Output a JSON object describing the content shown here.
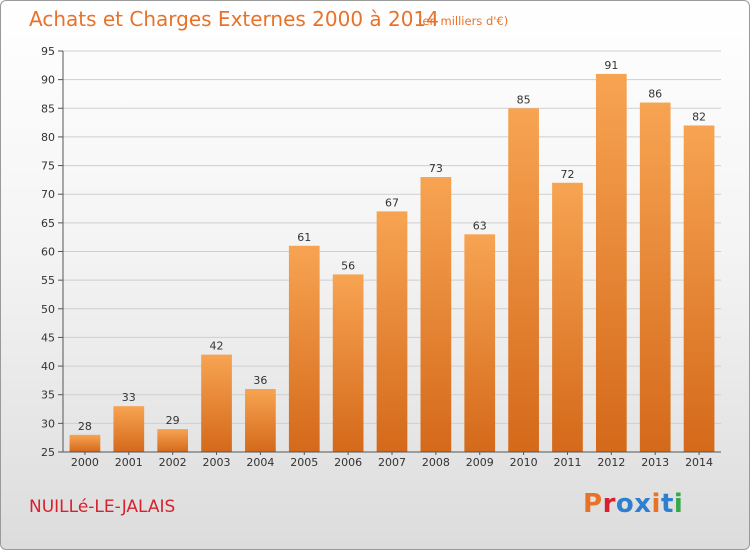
{
  "header": {
    "title": "Achats et Charges Externes 2000 à 2014",
    "subtitle": "(en milliers d'€)"
  },
  "footer": {
    "town": "NUILLé-LE-JALAIS",
    "logo_text": "Proxiti",
    "logo_colors": [
      "#e8722a",
      "#d8202e",
      "#2f7fd0",
      "#2f7fd0",
      "#e8722a",
      "#2f7fd0",
      "#3aa84a"
    ]
  },
  "chart_data": {
    "type": "bar",
    "categories": [
      "2000",
      "2001",
      "2002",
      "2003",
      "2004",
      "2005",
      "2006",
      "2007",
      "2008",
      "2009",
      "2010",
      "2011",
      "2012",
      "2013",
      "2014"
    ],
    "values": [
      28,
      33,
      29,
      42,
      36,
      61,
      56,
      67,
      73,
      63,
      85,
      72,
      91,
      86,
      82
    ],
    "ylim": [
      25,
      95
    ],
    "yticks": [
      25,
      30,
      35,
      40,
      45,
      50,
      55,
      60,
      65,
      70,
      75,
      80,
      85,
      90,
      95
    ],
    "grid": true,
    "colors": {
      "bar_top": "#f7a452",
      "bar_bottom": "#d4691a",
      "grid": "#cfcfcf"
    }
  }
}
